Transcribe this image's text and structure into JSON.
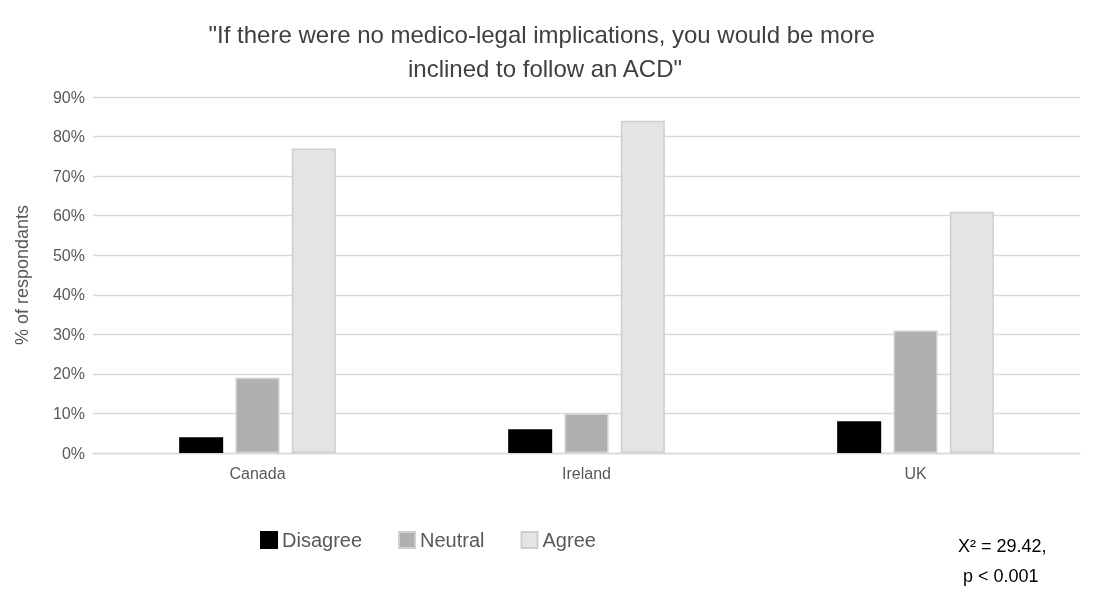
{
  "chart_data": {
    "type": "bar",
    "title": "\"If there were no medico-legal implications, you would be more inclined to follow an ACD\"",
    "ylabel": "% of respondants",
    "categories": [
      "Canada",
      "Ireland",
      "UK"
    ],
    "series": [
      {
        "name": "Disagree",
        "color": "#000000",
        "values": [
          4,
          6,
          8
        ]
      },
      {
        "name": "Neutral",
        "color": "#b0b0b0",
        "values": [
          19,
          10,
          31
        ]
      },
      {
        "name": "Agree",
        "color": "#e4e4e4",
        "values": [
          77,
          84,
          61
        ]
      }
    ],
    "ylim": [
      0,
      90
    ],
    "yticks": [
      {
        "value": 0,
        "label": "0%"
      },
      {
        "value": 10,
        "label": "10%"
      },
      {
        "value": 20,
        "label": "20%"
      },
      {
        "value": 30,
        "label": "30%"
      },
      {
        "value": 40,
        "label": "40%"
      },
      {
        "value": 50,
        "label": "50%"
      },
      {
        "value": 60,
        "label": "60%"
      },
      {
        "value": 70,
        "label": "70%"
      },
      {
        "value": 80,
        "label": "80%"
      },
      {
        "value": 90,
        "label": "90%"
      }
    ],
    "grid": "y",
    "legend": "bottom",
    "annotations": [
      "X² = 29.42, p < 0.001"
    ]
  }
}
